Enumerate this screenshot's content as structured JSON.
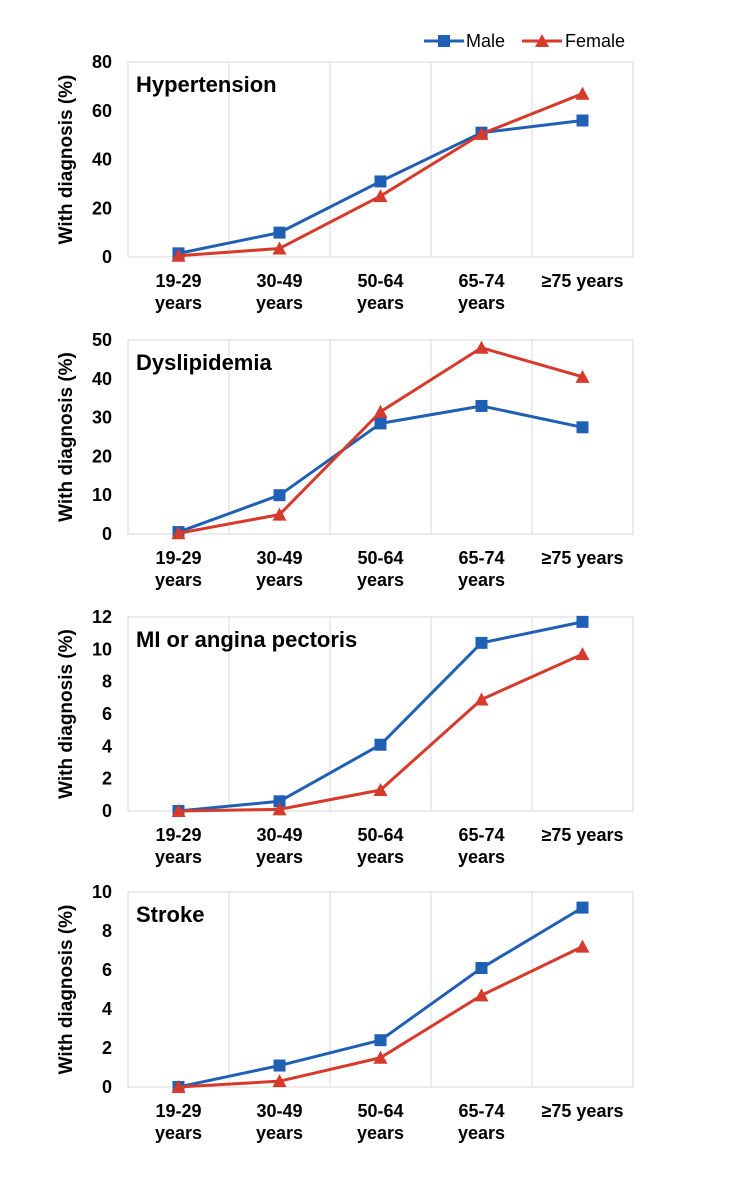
{
  "chart_data": [
    {
      "type": "line",
      "title": "Hypertension",
      "ylabel": "With diagnosis (%)",
      "ylim": [
        0,
        80
      ],
      "yticks": [
        0,
        20,
        40,
        60,
        80
      ],
      "categories": [
        [
          "19-29",
          "years"
        ],
        [
          "30-49",
          "years"
        ],
        [
          "50-64",
          "years"
        ],
        [
          "65-74",
          "years"
        ],
        [
          "≥75 years"
        ]
      ],
      "series": [
        {
          "name": "Male",
          "color": "#1f5fb4",
          "marker": "square",
          "values": [
            1.5,
            10,
            31,
            51,
            56
          ]
        },
        {
          "name": "Female",
          "color": "#d63a2a",
          "marker": "triangle",
          "values": [
            0.5,
            3.5,
            25,
            50.5,
            67
          ]
        }
      ]
    },
    {
      "type": "line",
      "title": "Dyslipidemia",
      "ylabel": "With diagnosis (%)",
      "ylim": [
        0,
        50
      ],
      "yticks": [
        0,
        10,
        20,
        30,
        40,
        50
      ],
      "categories": [
        [
          "19-29",
          "years"
        ],
        [
          "30-49",
          "years"
        ],
        [
          "50-64",
          "years"
        ],
        [
          "65-74",
          "years"
        ],
        [
          "≥75 years"
        ]
      ],
      "series": [
        {
          "name": "Male",
          "color": "#1f5fb4",
          "marker": "square",
          "values": [
            0.5,
            10,
            28.5,
            33,
            27.5
          ]
        },
        {
          "name": "Female",
          "color": "#d63a2a",
          "marker": "triangle",
          "values": [
            0.2,
            5,
            31.5,
            48,
            40.5
          ]
        }
      ]
    },
    {
      "type": "line",
      "title": "MI or angina pectoris",
      "ylabel": "With diagnosis (%)",
      "ylim": [
        0,
        12
      ],
      "yticks": [
        0,
        2,
        4,
        6,
        8,
        10,
        12
      ],
      "categories": [
        [
          "19-29",
          "years"
        ],
        [
          "30-49",
          "years"
        ],
        [
          "50-64",
          "years"
        ],
        [
          "65-74",
          "years"
        ],
        [
          "≥75 years"
        ]
      ],
      "series": [
        {
          "name": "Male",
          "color": "#1f5fb4",
          "marker": "square",
          "values": [
            0,
            0.6,
            4.1,
            10.4,
            11.7
          ]
        },
        {
          "name": "Female",
          "color": "#d63a2a",
          "marker": "triangle",
          "values": [
            0,
            0.1,
            1.3,
            6.9,
            9.7
          ]
        }
      ]
    },
    {
      "type": "line",
      "title": "Stroke",
      "ylabel": "With diagnosis (%)",
      "ylim": [
        0,
        10
      ],
      "yticks": [
        0,
        2,
        4,
        6,
        8,
        10
      ],
      "categories": [
        [
          "19-29",
          "years"
        ],
        [
          "30-49",
          "years"
        ],
        [
          "50-64",
          "years"
        ],
        [
          "65-74",
          "years"
        ],
        [
          "≥75 years"
        ]
      ],
      "series": [
        {
          "name": "Male",
          "color": "#1f5fb4",
          "marker": "square",
          "values": [
            0,
            1.1,
            2.4,
            6.1,
            9.2
          ]
        },
        {
          "name": "Female",
          "color": "#d63a2a",
          "marker": "triangle",
          "values": [
            0,
            0.3,
            1.5,
            4.7,
            7.2
          ]
        }
      ]
    }
  ],
  "legend": [
    {
      "name": "Male",
      "color": "#1f5fb4",
      "marker": "square"
    },
    {
      "name": "Female",
      "color": "#d63a2a",
      "marker": "triangle"
    }
  ]
}
